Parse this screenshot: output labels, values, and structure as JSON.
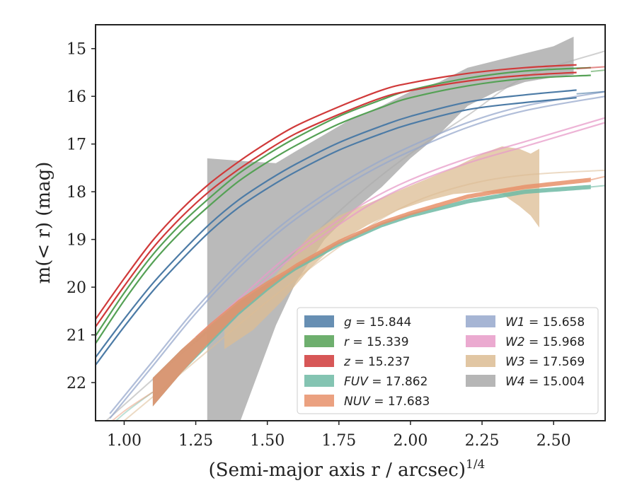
{
  "chart_data": {
    "type": "line",
    "xlabel": "(Semi-major axis r / arcsec)",
    "xlabel_sup": "1/4",
    "ylabel": "m(< r) (mag)",
    "xlim": [
      0.9,
      2.68
    ],
    "ylim": [
      22.8,
      14.5
    ],
    "y_inverted": true,
    "x_ticks": [
      "1.00",
      "1.25",
      "1.50",
      "1.75",
      "2.00",
      "2.25",
      "2.50"
    ],
    "y_ticks": [
      "15",
      "16",
      "17",
      "18",
      "19",
      "20",
      "21",
      "22"
    ],
    "grid": false,
    "legend_position": "lower-right",
    "series": [
      {
        "name": "g",
        "value": "15.844",
        "color": "#4c7ba6",
        "x": [
          0.9,
          1.0,
          1.1,
          1.2,
          1.3,
          1.4,
          1.5,
          1.6,
          1.75,
          1.9,
          2.0,
          2.2,
          2.4,
          2.58
        ],
        "y": [
          21.55,
          20.75,
          20.0,
          19.35,
          18.75,
          18.25,
          17.85,
          17.5,
          17.05,
          16.7,
          16.5,
          16.2,
          16.05,
          15.95
        ],
        "band": 0.08,
        "fit_to": 2.68,
        "fit_y_end": 15.9
      },
      {
        "name": "r",
        "value": "15.339",
        "color": "#55a155",
        "x": [
          0.9,
          1.0,
          1.1,
          1.2,
          1.3,
          1.4,
          1.5,
          1.6,
          1.75,
          1.9,
          2.0,
          2.2,
          2.4,
          2.63
        ],
        "y": [
          21.1,
          20.2,
          19.4,
          18.75,
          18.2,
          17.7,
          17.3,
          16.95,
          16.5,
          16.15,
          15.95,
          15.7,
          15.55,
          15.48
        ],
        "band": 0.08,
        "fit_to": 2.68,
        "fit_y_end": 15.45
      },
      {
        "name": "z",
        "value": "15.237",
        "color": "#d03a3a",
        "x": [
          0.9,
          1.0,
          1.1,
          1.2,
          1.3,
          1.4,
          1.5,
          1.6,
          1.75,
          1.9,
          2.0,
          2.2,
          2.4,
          2.58
        ],
        "y": [
          20.75,
          19.9,
          19.1,
          18.45,
          17.9,
          17.45,
          17.05,
          16.7,
          16.3,
          15.95,
          15.8,
          15.6,
          15.48,
          15.42
        ],
        "band": 0.08,
        "fit_to": 2.68,
        "fit_y_end": 15.38
      },
      {
        "name": "FUV",
        "value": "17.862",
        "color": "#6fbaa4",
        "x": [
          1.1,
          1.2,
          1.3,
          1.4,
          1.5,
          1.6,
          1.75,
          1.9,
          2.0,
          2.2,
          2.4,
          2.63
        ],
        "y": [
          22.2,
          21.55,
          21.0,
          20.45,
          20.0,
          19.6,
          19.1,
          18.7,
          18.5,
          18.2,
          18.0,
          17.9
        ],
        "band": 0.3,
        "fit_from": 0.9,
        "fit_y_start": 23.2,
        "fit_to": 2.68,
        "fit_y_end": 17.87
      },
      {
        "name": "NUV",
        "value": "17.683",
        "color": "#e8916a",
        "x": [
          1.1,
          1.2,
          1.3,
          1.4,
          1.5,
          1.6,
          1.75,
          1.9,
          2.0,
          2.2,
          2.4,
          2.63
        ],
        "y": [
          22.2,
          21.55,
          20.95,
          20.4,
          19.95,
          19.55,
          19.05,
          18.65,
          18.45,
          18.1,
          17.9,
          17.75
        ],
        "band": 0.3,
        "fit_from": 0.9,
        "fit_y_start": 23.1,
        "fit_to": 2.68,
        "fit_y_end": 17.68
      },
      {
        "name": "W1",
        "value": "15.658",
        "color": "#97a8cc",
        "x": [
          0.95,
          1.1,
          1.25,
          1.4,
          1.55,
          1.7,
          1.85,
          2.0,
          2.2,
          2.4,
          2.68
        ],
        "y": [
          22.7,
          21.6,
          20.5,
          19.55,
          18.75,
          18.1,
          17.55,
          17.1,
          16.6,
          16.25,
          15.95
        ],
        "band": 0.05
      },
      {
        "name": "W2",
        "value": "15.968",
        "color": "#e79bc8",
        "x": [
          1.25,
          1.4,
          1.55,
          1.7,
          1.85,
          2.0,
          2.2,
          2.4,
          2.68
        ],
        "y": [
          21.1,
          20.3,
          19.5,
          18.85,
          18.25,
          17.8,
          17.35,
          17.0,
          16.5
        ],
        "band": 0.05
      },
      {
        "name": "W3",
        "value": "17.569",
        "color": "#dcbc93",
        "x": [
          1.35,
          1.45,
          1.55,
          1.65,
          1.75,
          1.85,
          1.95,
          2.05,
          2.15,
          2.25,
          2.32,
          2.38,
          2.42,
          2.45
        ],
        "y_low": [
          21.3,
          20.9,
          20.3,
          19.6,
          19.05,
          18.7,
          18.4,
          18.2,
          18.05,
          18.0,
          18.05,
          18.3,
          18.5,
          18.75
        ],
        "y_high": [
          20.9,
          20.3,
          19.6,
          18.9,
          18.5,
          18.25,
          18.0,
          17.75,
          17.5,
          17.2,
          17.05,
          17.1,
          17.2,
          17.1
        ],
        "fit_x": [
          0.9,
          1.2,
          1.5,
          1.8,
          2.0,
          2.2,
          2.4,
          2.68
        ],
        "fit_y": [
          23.3,
          21.8,
          20.3,
          18.95,
          18.25,
          17.85,
          17.65,
          17.55
        ]
      },
      {
        "name": "W4",
        "value": "15.004",
        "color": "#a9a9a9",
        "x": [
          1.29,
          1.4,
          1.53,
          1.6,
          1.7,
          1.8,
          1.9,
          2.0,
          2.1,
          2.2,
          2.3,
          2.4,
          2.5,
          2.57
        ],
        "y_low": [
          22.9,
          22.9,
          20.8,
          19.9,
          19.0,
          18.4,
          17.9,
          17.3,
          16.8,
          16.2,
          15.9,
          15.7,
          15.6,
          15.55
        ],
        "y_high": [
          17.3,
          17.35,
          17.4,
          17.15,
          16.8,
          16.45,
          16.2,
          15.9,
          15.7,
          15.4,
          15.25,
          15.1,
          14.95,
          14.75
        ],
        "fit_x": [
          0.9,
          1.2,
          1.5,
          1.8,
          2.0,
          2.2,
          2.4,
          2.68
        ],
        "fit_y": [
          23.0,
          21.4,
          19.8,
          18.15,
          17.2,
          16.4,
          15.6,
          15.05
        ]
      }
    ]
  }
}
